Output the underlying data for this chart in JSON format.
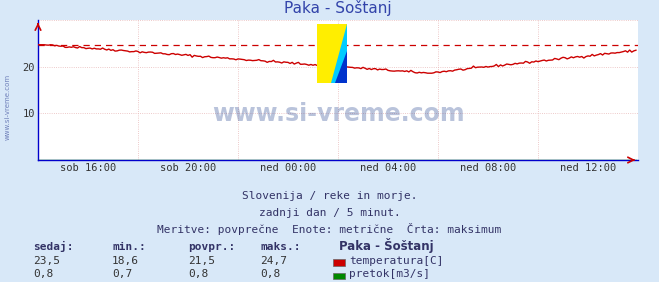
{
  "title": "Paka - Šoštanj",
  "bg_color": "#d8e8f8",
  "plot_bg_color": "#ffffff",
  "grid_color": "#e8b8b8",
  "xlabel_ticks": [
    "sob 16:00",
    "sob 20:00",
    "ned 00:00",
    "ned 04:00",
    "ned 08:00",
    "ned 12:00"
  ],
  "ylim": [
    0,
    30
  ],
  "xlim": [
    0,
    288
  ],
  "temp_color": "#cc0000",
  "flow_color": "#008800",
  "max_line_color": "#cc0000",
  "axis_color": "#0000cc",
  "max_value": 24.7,
  "min_value": 18.6,
  "avg_value": 21.5,
  "cur_value": 23.5,
  "flow_cur": 0.8,
  "flow_min": 0.7,
  "flow_avg": 0.8,
  "flow_max": 0.8,
  "watermark": "www.si-vreme.com",
  "watermark_color": "#1a3a8a",
  "watermark_alpha": 0.3,
  "sidebar_text": "www.si-vreme.com",
  "footer1": "Slovenija / reke in morje.",
  "footer2": "zadnji dan / 5 minut.",
  "footer3": "Meritve: povprečne  Enote: metrične  Črta: maksimum",
  "label_color": "#333366",
  "title_color": "#3344aa",
  "logo_yellow": "#ffee00",
  "logo_cyan": "#00ccff",
  "logo_blue": "#0033cc"
}
